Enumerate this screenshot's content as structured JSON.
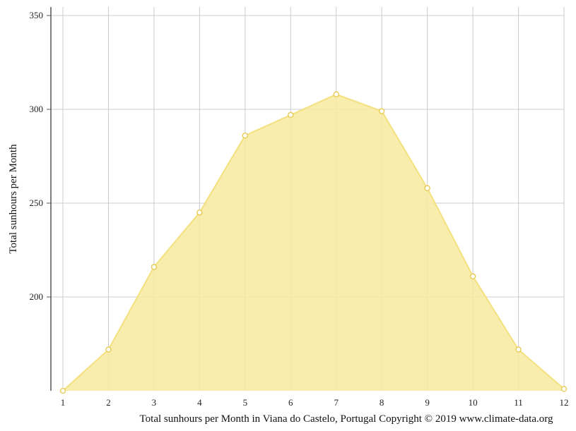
{
  "chart_data": {
    "type": "area",
    "title": "",
    "ylabel": "Total sunhours per Month",
    "xlabel": "Total sunhours per Month in Viana do Castelo, Portugal Copyright © 2019 www.climate-data.org",
    "x": [
      1,
      2,
      3,
      4,
      5,
      6,
      7,
      8,
      9,
      10,
      11,
      12
    ],
    "series": [
      {
        "values": [
          150,
          172,
          216,
          245,
          286,
          297,
          308,
          299,
          258,
          211,
          172,
          151
        ]
      }
    ],
    "yticks": [
      200,
      250,
      300,
      350
    ],
    "ylim": [
      150,
      354.5
    ],
    "xlim": [
      1,
      12
    ],
    "grid": true,
    "legend": "none",
    "colors": {
      "fill": "#f8eaa0",
      "line": "#f4e07e",
      "marker_fill": "#ffffff",
      "marker_stroke": "#e6c84a",
      "grid": "#cccccc",
      "axis": "#555555"
    }
  }
}
